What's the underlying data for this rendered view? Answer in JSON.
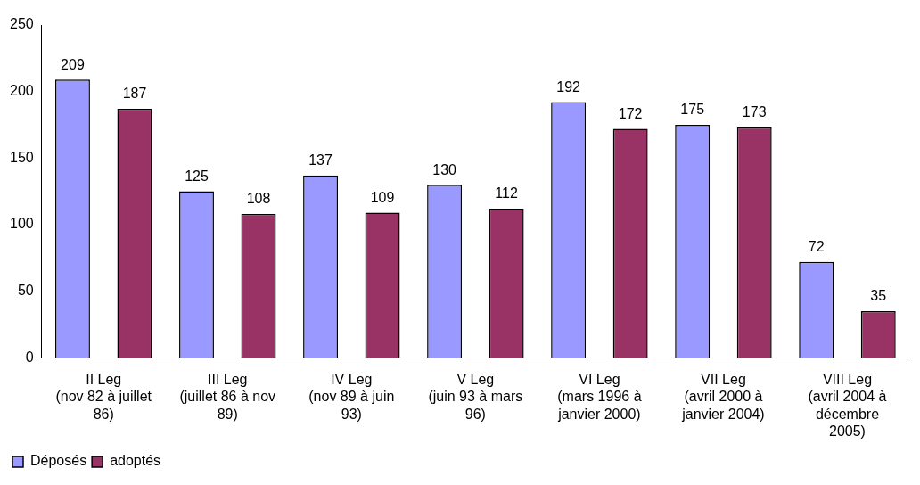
{
  "chart_data": {
    "type": "bar",
    "categories": [
      "II Leg (nov 82 à juillet 86)",
      "III Leg (juillet 86 à nov 89)",
      "IV Leg (nov 89 à juin 93)",
      "V Leg (juin 93 à mars 96)",
      "VI Leg (mars 1996 à janvier 2000)",
      "VII Leg (avril 2000 à janvier 2004)",
      "VIII Leg (avril 2004 à décembre 2005)"
    ],
    "series": [
      {
        "name": "Déposés",
        "color": "#9999ff",
        "values": [
          209,
          125,
          137,
          130,
          192,
          175,
          72
        ]
      },
      {
        "name": "adoptés",
        "color": "#993366",
        "values": [
          187,
          108,
          109,
          112,
          172,
          173,
          35
        ]
      }
    ],
    "ylim": [
      0,
      250
    ],
    "yticks": [
      0,
      50,
      100,
      150,
      200,
      250
    ],
    "grid": false,
    "legend": "bottom left",
    "data_labels": true
  }
}
